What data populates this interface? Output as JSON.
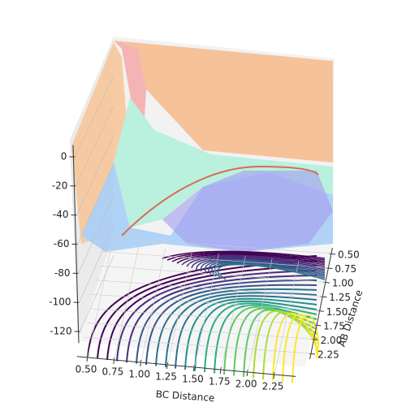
{
  "chart_data": {
    "type": "surface3d",
    "xlabel": "BC Distance",
    "ylabel": "AB Distance",
    "xlim": [
      0.4,
      2.45
    ],
    "ylim": [
      0.4,
      2.35
    ],
    "zlim": [
      -128,
      8
    ],
    "xticks": [
      {
        "value": 0.5,
        "label": "0.50"
      },
      {
        "value": 0.75,
        "label": "0.75"
      },
      {
        "value": 1.0,
        "label": "1.00"
      },
      {
        "value": 1.25,
        "label": "1.25"
      },
      {
        "value": 1.5,
        "label": "1.50"
      },
      {
        "value": 1.75,
        "label": "1.75"
      },
      {
        "value": 2.0,
        "label": "2.00"
      },
      {
        "value": 2.25,
        "label": "2.25"
      }
    ],
    "yticks": [
      {
        "value": 0.5,
        "label": "0.50"
      },
      {
        "value": 0.75,
        "label": "0.75"
      },
      {
        "value": 1.0,
        "label": "1.00"
      },
      {
        "value": 1.25,
        "label": "1.25"
      },
      {
        "value": 1.5,
        "label": "1.50"
      },
      {
        "value": 1.75,
        "label": "1.75"
      },
      {
        "value": 2.0,
        "label": "2.00"
      },
      {
        "value": 2.25,
        "label": "2.25"
      }
    ],
    "zticks": [
      0,
      -20,
      -40,
      -60,
      -80,
      -100,
      -120
    ]
  }
}
